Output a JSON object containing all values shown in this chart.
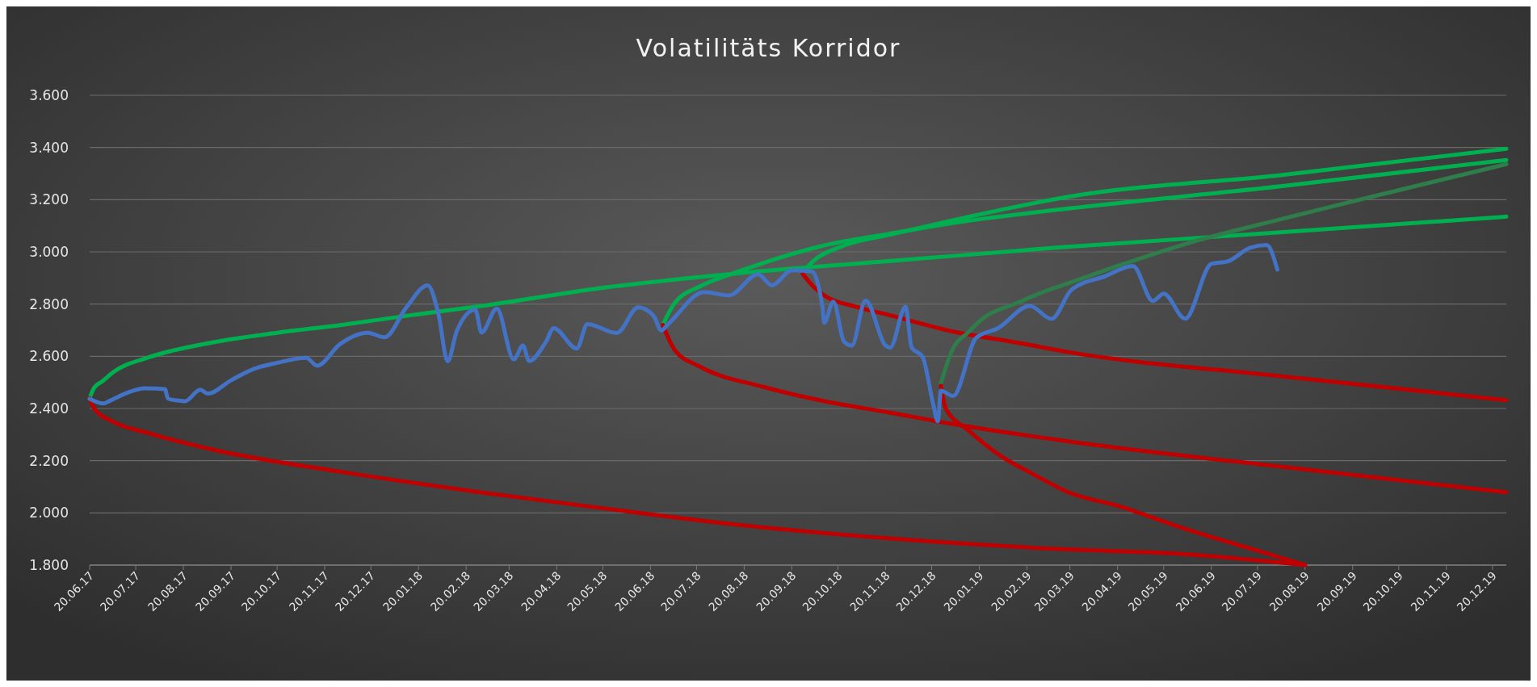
{
  "chart_data": {
    "type": "line",
    "title": "Volatilitäts Korridor",
    "ylim": [
      1800,
      3600
    ],
    "yticks": [
      {
        "value": 1800,
        "label": "1.800"
      },
      {
        "value": 2000,
        "label": "2.000"
      },
      {
        "value": 2200,
        "label": "2.200"
      },
      {
        "value": 2400,
        "label": "2.400"
      },
      {
        "value": 2600,
        "label": "2.600"
      },
      {
        "value": 2800,
        "label": "2.800"
      },
      {
        "value": 3000,
        "label": "3.000"
      },
      {
        "value": 3200,
        "label": "3.200"
      },
      {
        "value": 3400,
        "label": "3.400"
      },
      {
        "value": 3600,
        "label": "3.600"
      }
    ],
    "xlim": [
      "2017-06-20",
      "2019-12-29"
    ],
    "xticks": [
      {
        "value": "2017-06-20",
        "label": "20.06.17"
      },
      {
        "value": "2017-07-20",
        "label": "20.07.17"
      },
      {
        "value": "2017-08-20",
        "label": "20.08.17"
      },
      {
        "value": "2017-09-20",
        "label": "20.09.17"
      },
      {
        "value": "2017-10-20",
        "label": "20.10.17"
      },
      {
        "value": "2017-11-20",
        "label": "20.11.17"
      },
      {
        "value": "2017-12-20",
        "label": "20.12.17"
      },
      {
        "value": "2018-01-20",
        "label": "20.01.18"
      },
      {
        "value": "2018-02-20",
        "label": "20.02.18"
      },
      {
        "value": "2018-03-20",
        "label": "20.03.18"
      },
      {
        "value": "2018-04-20",
        "label": "20.04.18"
      },
      {
        "value": "2018-05-20",
        "label": "20.05.18"
      },
      {
        "value": "2018-06-20",
        "label": "20.06.18"
      },
      {
        "value": "2018-07-20",
        "label": "20.07.18"
      },
      {
        "value": "2018-08-20",
        "label": "20.08.18"
      },
      {
        "value": "2018-09-20",
        "label": "20.09.18"
      },
      {
        "value": "2018-10-20",
        "label": "20.10.18"
      },
      {
        "value": "2018-11-20",
        "label": "20.11.18"
      },
      {
        "value": "2018-12-20",
        "label": "20.12.18"
      },
      {
        "value": "2019-01-20",
        "label": "20.01.19"
      },
      {
        "value": "2019-02-20",
        "label": "20.02.19"
      },
      {
        "value": "2019-03-20",
        "label": "20.03.19"
      },
      {
        "value": "2019-04-20",
        "label": "20.04.19"
      },
      {
        "value": "2019-05-20",
        "label": "20.05.19"
      },
      {
        "value": "2019-06-20",
        "label": "20.06.19"
      },
      {
        "value": "2019-07-20",
        "label": "20.07.19"
      },
      {
        "value": "2019-08-20",
        "label": "20.08.19"
      },
      {
        "value": "2019-09-20",
        "label": "20.09.19"
      },
      {
        "value": "2019-10-20",
        "label": "20.10.19"
      },
      {
        "value": "2019-11-20",
        "label": "20.11.19"
      },
      {
        "value": "2019-12-20",
        "label": "20.12.19"
      }
    ],
    "grid": "y",
    "line_style": "solid",
    "marker": "none",
    "series": [
      {
        "color": "#00b050",
        "x": [
          "2017-06-20",
          "2017-06-23",
          "2017-06-28",
          "2017-07-05",
          "2017-07-28",
          "2017-09-07",
          "2017-10-20",
          "2017-12-02",
          "2018-01-17",
          "2018-02-28",
          "2018-05-17",
          "2018-08-12",
          "2018-11-23",
          "2019-03-11",
          "2019-08-02",
          "2019-12-29"
        ],
        "values": [
          2440,
          2480,
          2503,
          2538,
          2595,
          2652,
          2690,
          2721,
          2759,
          2791,
          2860,
          2916,
          2965,
          3016,
          3074,
          3135
        ]
      },
      {
        "color": "#c00000",
        "x": [
          "2017-06-20",
          "2017-06-23",
          "2017-07-05",
          "2017-07-28",
          "2017-09-07",
          "2017-12-02",
          "2018-02-28",
          "2018-05-17",
          "2018-08-12",
          "2018-11-23",
          "2019-03-19",
          "2019-06-03",
          "2019-08-20"
        ],
        "values": [
          2440,
          2400,
          2350,
          2306,
          2244,
          2156,
          2080,
          2020,
          1957,
          1902,
          1860,
          1842,
          1800
        ]
      },
      {
        "color": "#00b050",
        "x": [
          "2018-06-28",
          "2018-07-06",
          "2018-07-22",
          "2018-08-12",
          "2018-09-02",
          "2018-10-12",
          "2018-11-23",
          "2019-01-02",
          "2019-03-19",
          "2019-08-04",
          "2019-12-29"
        ],
        "values": [
          2720,
          2806,
          2867,
          2916,
          2959,
          3026,
          3070,
          3110,
          3166,
          3251,
          3352
        ]
      },
      {
        "color": "#c00000",
        "x": [
          "2018-06-28",
          "2018-07-06",
          "2018-07-22",
          "2018-09-02",
          "2018-10-12",
          "2018-11-23",
          "2019-01-02",
          "2019-03-19",
          "2019-08-04",
          "2019-12-29"
        ],
        "values": [
          2720,
          2622,
          2561,
          2482,
          2427,
          2384,
          2341,
          2274,
          2177,
          2079
        ]
      },
      {
        "color": "#00b050",
        "x": [
          "2018-09-27",
          "2018-10-04",
          "2018-10-22",
          "2018-11-23",
          "2019-01-02",
          "2019-03-19",
          "2019-08-04",
          "2019-12-29"
        ],
        "values": [
          2922,
          2965,
          3020,
          3066,
          3120,
          3211,
          3294,
          3395
        ]
      },
      {
        "color": "#c00000",
        "x": [
          "2018-09-27",
          "2018-10-04",
          "2018-10-12",
          "2018-11-02",
          "2018-11-23",
          "2019-01-02",
          "2019-02-13",
          "2019-03-19",
          "2019-08-04",
          "2019-12-29"
        ],
        "values": [
          2916,
          2867,
          2830,
          2788,
          2757,
          2696,
          2653,
          2616,
          2524,
          2432
        ]
      },
      {
        "color": "#2e7d4a",
        "x": [
          "2018-12-26",
          "2019-01-02",
          "2019-01-13",
          "2019-01-23",
          "2019-02-13",
          "2019-03-05",
          "2019-03-19",
          "2019-04-22",
          "2019-06-03",
          "2019-08-04",
          "2019-10-05",
          "2019-12-29"
        ],
        "values": [
          2497,
          2619,
          2693,
          2748,
          2803,
          2852,
          2880,
          2950,
          3030,
          3125,
          3215,
          3336
        ]
      },
      {
        "color": "#c00000",
        "x": [
          "2018-12-26",
          "2018-12-29",
          "2019-01-13",
          "2019-02-03",
          "2019-02-23",
          "2019-03-19",
          "2019-04-22",
          "2019-06-03",
          "2019-07-14",
          "2019-08-20"
        ],
        "values": [
          2487,
          2402,
          2316,
          2218,
          2152,
          2079,
          2024,
          1939,
          1866,
          1800
        ]
      },
      {
        "color": "#4472c4",
        "x": [
          "2017-06-20",
          "2017-06-29",
          "2017-07-03",
          "2017-07-14",
          "2017-07-26",
          "2017-08-08",
          "2017-08-10",
          "2017-08-17",
          "2017-08-21",
          "2017-08-31",
          "2017-09-05",
          "2017-09-20",
          "2017-10-05",
          "2017-10-20",
          "2017-11-08",
          "2017-11-15",
          "2017-11-30",
          "2017-12-18",
          "2017-12-29",
          "2018-01-12",
          "2018-01-26",
          "2018-02-02",
          "2018-02-08",
          "2018-02-14",
          "2018-02-26",
          "2018-03-02",
          "2018-03-12",
          "2018-03-23",
          "2018-03-29",
          "2018-04-02",
          "2018-04-13",
          "2018-04-18",
          "2018-05-03",
          "2018-05-10",
          "2018-05-29",
          "2018-06-12",
          "2018-06-22",
          "2018-06-27",
          "2018-07-02",
          "2018-07-25",
          "2018-08-10",
          "2018-08-29",
          "2018-09-07",
          "2018-09-20",
          "2018-10-03",
          "2018-10-10",
          "2018-10-11",
          "2018-10-17",
          "2018-10-24",
          "2018-10-29",
          "2018-11-07",
          "2018-11-20",
          "2018-11-23",
          "2018-12-03",
          "2018-12-07",
          "2018-12-14",
          "2018-12-21",
          "2018-12-24",
          "2018-12-26",
          "2019-01-03",
          "2019-01-18",
          "2019-02-01",
          "2019-02-22",
          "2019-03-08",
          "2019-03-21",
          "2019-04-12",
          "2019-04-30",
          "2019-05-13",
          "2019-05-20",
          "2019-06-03",
          "2019-06-20",
          "2019-07-01",
          "2019-07-15",
          "2019-07-26",
          "2019-08-02"
        ],
        "values": [
          2437,
          2419,
          2429,
          2459,
          2477,
          2474,
          2438,
          2430,
          2428,
          2472,
          2457,
          2508,
          2552,
          2575,
          2594,
          2564,
          2647,
          2690,
          2673,
          2786,
          2872,
          2762,
          2581,
          2698,
          2779,
          2691,
          2783,
          2588,
          2641,
          2582,
          2656,
          2708,
          2630,
          2723,
          2689,
          2787,
          2755,
          2699,
          2726,
          2846,
          2833,
          2914,
          2872,
          2930,
          2925,
          2785,
          2728,
          2809,
          2656,
          2641,
          2814,
          2641,
          2633,
          2790,
          2633,
          2599,
          2417,
          2351,
          2468,
          2448,
          2671,
          2707,
          2793,
          2743,
          2855,
          2907,
          2946,
          2812,
          2840,
          2744,
          2954,
          2964,
          3015,
          3026,
          2932
        ]
      }
    ]
  }
}
